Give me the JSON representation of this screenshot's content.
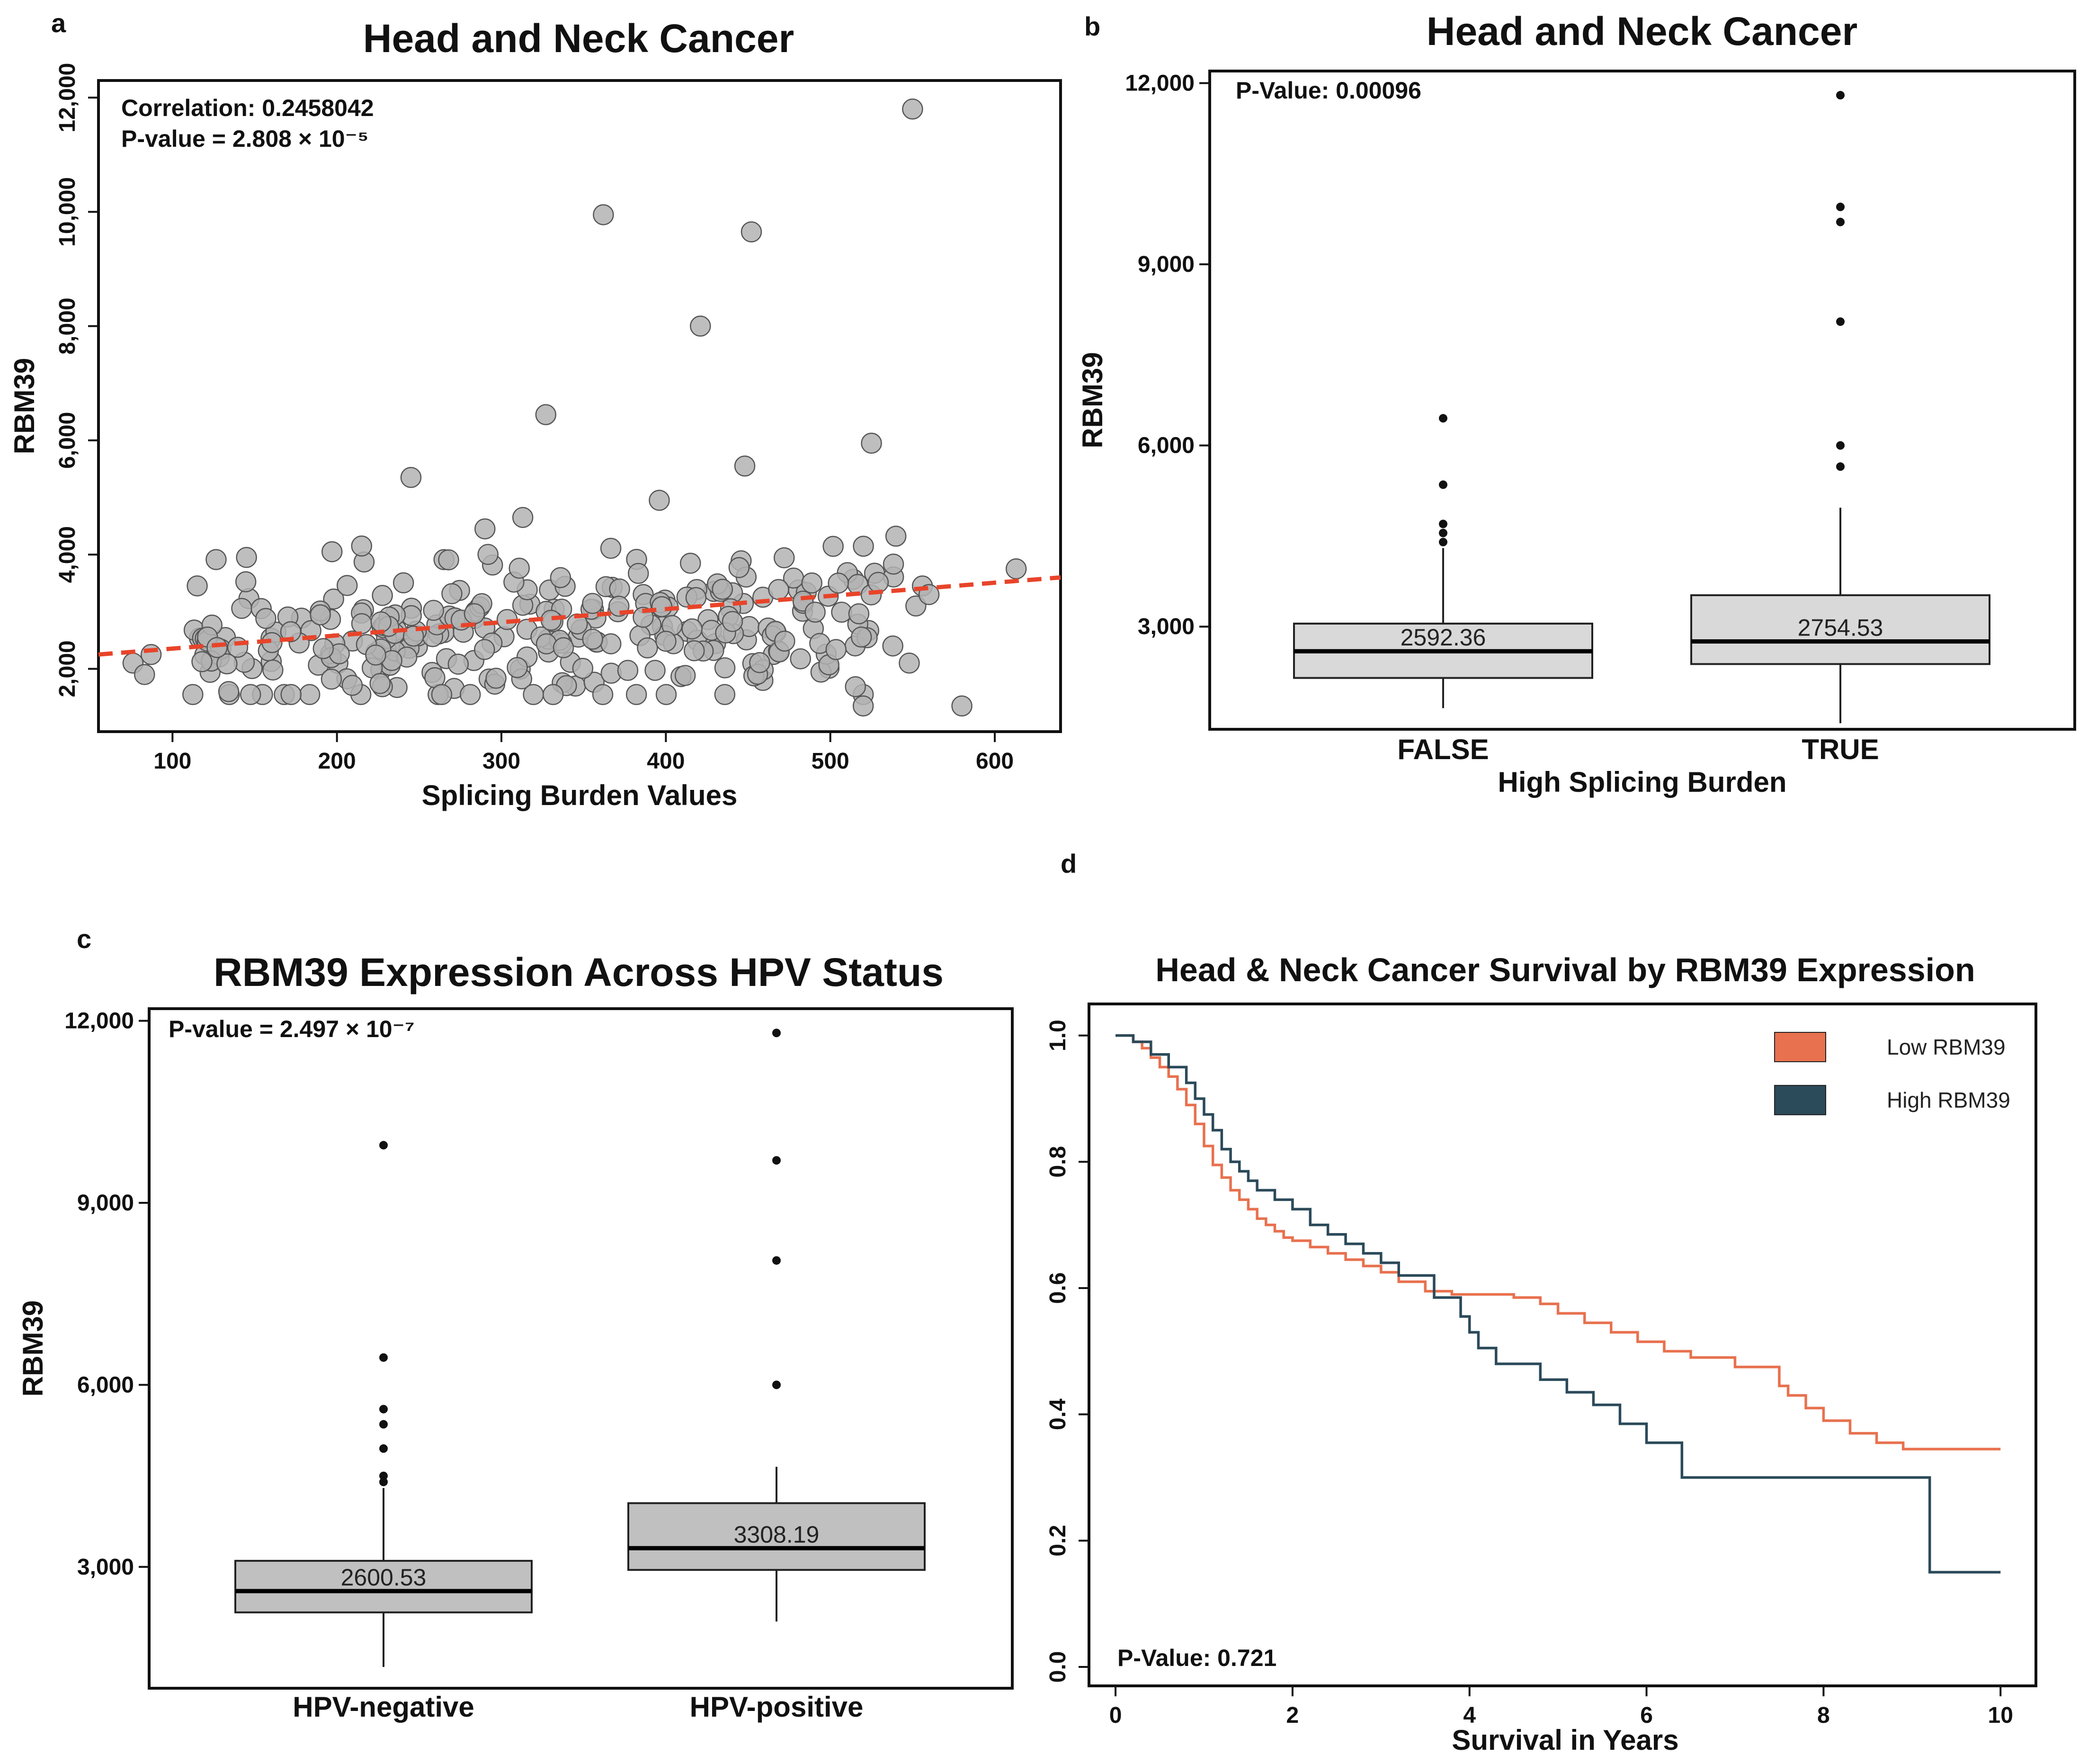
{
  "panels": {
    "a": {
      "label": "a",
      "title": "Head and Neck Cancer",
      "correlation_text": "Correlation: 0.2458042",
      "pvalue_text": "P-value = 2.808 × 10⁻⁵"
    },
    "b": {
      "label": "b",
      "title": "Head and Neck Cancer",
      "pvalue_text": "P-Value: 0.00096"
    },
    "c": {
      "label": "c",
      "title": "RBM39 Expression Across HPV Status",
      "pvalue_text": "P-value = 2.497 × 10⁻⁷"
    },
    "d": {
      "label": "d",
      "title": "Head & Neck Cancer Survival by RBM39 Expression",
      "pvalue_text": "P-Value: 0.721"
    }
  },
  "chart_data": [
    {
      "id": "a",
      "type": "scatter",
      "title": "Head and Neck Cancer",
      "xlabel": "Splicing Burden Values",
      "ylabel": "RBM39",
      "xlim": [
        55,
        640
      ],
      "ylim": [
        900,
        12300
      ],
      "xticks": [
        100,
        200,
        300,
        400,
        500,
        600
      ],
      "yticks": [
        2000,
        4000,
        6000,
        8000,
        10000,
        12000
      ],
      "ytick_labels": [
        "2,000",
        "4,000",
        "6,000",
        "8,000",
        "10,000",
        "12,000"
      ],
      "point_color": "#b3b3b3",
      "trend_color": "#e8442a",
      "trend": {
        "x": [
          55,
          640
        ],
        "y": [
          2250,
          3600
        ]
      },
      "outliers": [
        [
          550,
          11800
        ],
        [
          362,
          9950
        ],
        [
          452,
          9650
        ],
        [
          421,
          8000
        ],
        [
          327,
          6450
        ],
        [
          525,
          5950
        ],
        [
          448,
          5550
        ],
        [
          245,
          5350
        ],
        [
          396,
          4950
        ],
        [
          313,
          4650
        ],
        [
          290,
          4450
        ],
        [
          613,
          3750
        ],
        [
          145,
          3950
        ],
        [
          197,
          4050
        ],
        [
          215,
          4150
        ],
        [
          76,
          2100
        ],
        [
          87,
          2250
        ],
        [
          83,
          1900
        ],
        [
          580,
          1350
        ],
        [
          520,
          1350
        ],
        [
          556,
          3450
        ],
        [
          552,
          3100
        ],
        [
          548,
          2100
        ],
        [
          538,
          2400
        ],
        [
          560,
          3300
        ]
      ],
      "cloud": {
        "count": 300,
        "x_range": [
          110,
          540
        ],
        "y_mean_at_xmin": 2300,
        "y_mean_at_xmax": 3000,
        "y_spread": 650,
        "seed": 7
      }
    },
    {
      "id": "b",
      "type": "box",
      "title": "Head and Neck Cancer",
      "xlabel": "High Splicing Burden",
      "ylabel": "RBM39",
      "ylim": [
        1300,
        12200
      ],
      "yticks": [
        3000,
        6000,
        9000,
        12000
      ],
      "ytick_labels": [
        "3,000",
        "6,000",
        "9,000",
        "12,000"
      ],
      "box_color": "#d9d9d9",
      "groups": [
        {
          "name": "FALSE",
          "whisker_low": 1650,
          "q1": 2150,
          "median": 2592.36,
          "q3": 3050,
          "whisker_high": 4300,
          "outliers": [
            4400,
            4550,
            4700,
            5350,
            6450
          ],
          "median_label": "2592.36"
        },
        {
          "name": "TRUE",
          "whisker_low": 1400,
          "q1": 2380,
          "median": 2754.53,
          "q3": 3520,
          "whisker_high": 4970,
          "outliers": [
            5650,
            6000,
            8050,
            9700,
            9950,
            11800
          ],
          "median_label": "2754.53"
        }
      ]
    },
    {
      "id": "c",
      "type": "box",
      "title": "RBM39 Expression Across HPV Status",
      "xlabel": "",
      "ylabel": "RBM39",
      "ylim": [
        1000,
        12200
      ],
      "yticks": [
        3000,
        6000,
        9000,
        12000
      ],
      "ytick_labels": [
        "3,000",
        "6,000",
        "9,000",
        "12,000"
      ],
      "box_color": "#c0c0c0",
      "groups": [
        {
          "name": "HPV-negative",
          "whisker_low": 1350,
          "q1": 2250,
          "median": 2600.53,
          "q3": 3100,
          "whisker_high": 4300,
          "outliers": [
            4400,
            4500,
            4950,
            5350,
            5600,
            6450,
            9950
          ],
          "median_label": "2600.53"
        },
        {
          "name": "HPV-positive",
          "whisker_low": 2100,
          "q1": 2950,
          "median": 3308.19,
          "q3": 4050,
          "whisker_high": 4650,
          "outliers": [
            6000,
            8050,
            9700,
            11800
          ],
          "median_label": "3308.19"
        }
      ]
    },
    {
      "id": "d",
      "type": "line",
      "title": "Head & Neck Cancer Survival by RBM39 Expression",
      "xlabel": "Survival in Years",
      "ylabel": "",
      "xlim": [
        -0.3,
        10.4
      ],
      "ylim": [
        -0.03,
        1.05
      ],
      "xticks": [
        0,
        2,
        4,
        6,
        8,
        10
      ],
      "yticks": [
        0.0,
        0.2,
        0.4,
        0.6,
        0.8,
        1.0
      ],
      "ytick_labels": [
        "0.0",
        "0.2",
        "0.4",
        "0.6",
        "0.8",
        "1.0"
      ],
      "legend_position": "top-right",
      "series": [
        {
          "name": "Low RBM39",
          "color": "#e8714f",
          "x": [
            0,
            0.2,
            0.3,
            0.4,
            0.5,
            0.6,
            0.7,
            0.8,
            0.9,
            1.0,
            1.1,
            1.2,
            1.3,
            1.4,
            1.5,
            1.6,
            1.7,
            1.8,
            1.9,
            2.0,
            2.2,
            2.4,
            2.6,
            2.8,
            3.0,
            3.2,
            3.5,
            3.8,
            4.1,
            4.5,
            4.8,
            5.0,
            5.3,
            5.6,
            5.9,
            6.2,
            6.5,
            7.0,
            7.4,
            7.5,
            7.6,
            7.8,
            8.0,
            8.3,
            8.6,
            8.9,
            9.2,
            10.0
          ],
          "values": [
            1.0,
            0.99,
            0.98,
            0.965,
            0.95,
            0.935,
            0.915,
            0.89,
            0.86,
            0.825,
            0.795,
            0.775,
            0.755,
            0.74,
            0.725,
            0.71,
            0.7,
            0.69,
            0.68,
            0.675,
            0.665,
            0.655,
            0.645,
            0.635,
            0.625,
            0.61,
            0.595,
            0.59,
            0.59,
            0.585,
            0.575,
            0.56,
            0.545,
            0.53,
            0.515,
            0.5,
            0.49,
            0.475,
            0.475,
            0.445,
            0.43,
            0.41,
            0.39,
            0.37,
            0.355,
            0.345,
            0.345,
            0.345
          ]
        },
        {
          "name": "High RBM39",
          "color": "#2b4a5a",
          "x": [
            0,
            0.2,
            0.4,
            0.6,
            0.8,
            0.9,
            1.0,
            1.1,
            1.2,
            1.3,
            1.4,
            1.5,
            1.6,
            1.8,
            2.0,
            2.2,
            2.4,
            2.6,
            2.8,
            3.0,
            3.2,
            3.6,
            3.8,
            3.9,
            4.0,
            4.1,
            4.3,
            4.5,
            4.8,
            5.1,
            5.4,
            5.7,
            6.0,
            6.2,
            6.4,
            7.0,
            8.0,
            9.1,
            9.2,
            10.0
          ],
          "values": [
            1.0,
            0.99,
            0.97,
            0.95,
            0.925,
            0.9,
            0.875,
            0.85,
            0.82,
            0.8,
            0.785,
            0.77,
            0.755,
            0.74,
            0.725,
            0.7,
            0.685,
            0.67,
            0.655,
            0.64,
            0.62,
            0.585,
            0.585,
            0.555,
            0.53,
            0.505,
            0.48,
            0.48,
            0.455,
            0.435,
            0.415,
            0.385,
            0.355,
            0.355,
            0.3,
            0.3,
            0.3,
            0.3,
            0.15,
            0.15
          ]
        }
      ]
    }
  ]
}
